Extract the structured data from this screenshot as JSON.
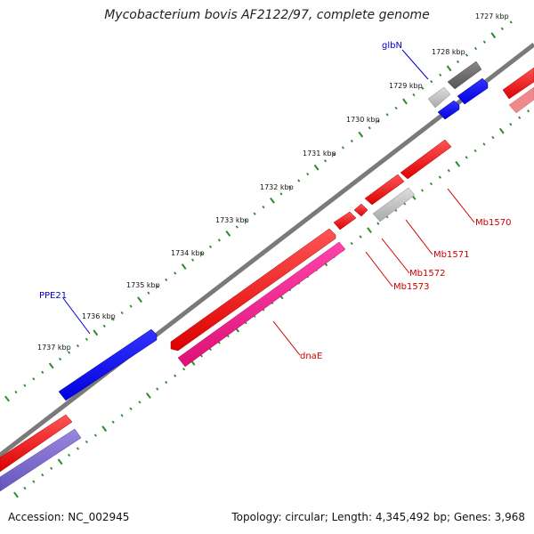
{
  "title": "Mycobacterium bovis AF2122/97, complete genome",
  "accession": "Accession: NC_002945",
  "summary": "Topology: circular; Length: 4,345,492 bp; Genes: 3,968",
  "ticks": [
    {
      "id": "t1727",
      "label": "1727 kbp"
    },
    {
      "id": "t1728",
      "label": "1728 kbp"
    },
    {
      "id": "t1729",
      "label": "1729 kbp"
    },
    {
      "id": "t1730",
      "label": "1730 kbp"
    },
    {
      "id": "t1731",
      "label": "1731 kbp"
    },
    {
      "id": "t1732",
      "label": "1732 kbp"
    },
    {
      "id": "t1733",
      "label": "1733 kbp"
    },
    {
      "id": "t1734",
      "label": "1734 kbp"
    },
    {
      "id": "t1735",
      "label": "1735 kbp"
    },
    {
      "id": "t1736",
      "label": "1736 kbp"
    },
    {
      "id": "t1737",
      "label": "1737 kbp"
    }
  ],
  "gene_labels": [
    {
      "id": "glbN",
      "label": "glbN",
      "color": "#0000cc"
    },
    {
      "id": "PPE21",
      "label": "PPE21",
      "color": "#0000cc"
    },
    {
      "id": "Mb1570",
      "label": "Mb1570",
      "color": "#cc0000"
    },
    {
      "id": "Mb1571",
      "label": "Mb1571",
      "color": "#cc0000"
    },
    {
      "id": "Mb1572",
      "label": "Mb1572",
      "color": "#cc0000"
    },
    {
      "id": "Mb1573",
      "label": "Mb1573",
      "color": "#cc0000"
    },
    {
      "id": "dnaE",
      "label": "dnaE",
      "color": "#cc0000"
    }
  ],
  "colors": {
    "backbone": "#7a7a7a",
    "tick": "#2a8a2a",
    "red_gene": "#ff0000",
    "blue_gene": "#0000ff",
    "pink_gene": "#ee2288",
    "gray_gene": "#bbbbbb",
    "darkgray_gene": "#666666",
    "lavender_gene": "#7766cc"
  }
}
